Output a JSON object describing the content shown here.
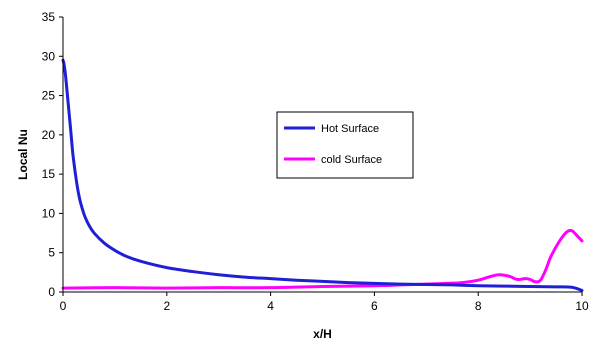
{
  "chart_data": {
    "type": "line",
    "title": "",
    "xlabel": "x/H",
    "ylabel": "Local Nu",
    "xlim": [
      0,
      10
    ],
    "ylim": [
      0,
      35
    ],
    "x_ticks": [
      0,
      2,
      4,
      6,
      8,
      10
    ],
    "y_ticks": [
      0,
      5,
      10,
      15,
      20,
      25,
      30,
      35
    ],
    "grid": false,
    "legend": "center-right",
    "series": [
      {
        "name": "Hot Surface",
        "color": "#1f1fd6",
        "x": [
          0,
          0.02,
          0.05,
          0.1,
          0.15,
          0.2,
          0.3,
          0.4,
          0.5,
          0.6,
          0.8,
          1.0,
          1.2,
          1.5,
          2.0,
          2.5,
          3.0,
          3.5,
          4.0,
          4.5,
          5.0,
          5.5,
          6.0,
          6.5,
          7.0,
          7.5,
          8.0,
          8.5,
          9.0,
          9.5,
          9.8,
          10.0
        ],
        "y": [
          29.5,
          29.0,
          27.5,
          24.0,
          20.5,
          17.0,
          12.5,
          10.0,
          8.5,
          7.5,
          6.2,
          5.3,
          4.6,
          3.9,
          3.1,
          2.6,
          2.2,
          1.9,
          1.7,
          1.5,
          1.35,
          1.2,
          1.1,
          1.0,
          0.95,
          0.9,
          0.8,
          0.75,
          0.7,
          0.65,
          0.6,
          0.2
        ]
      },
      {
        "name": "cold Surface",
        "color": "#ff00ff",
        "x": [
          0,
          1,
          2,
          3,
          4,
          5,
          6,
          6.5,
          7,
          7.4,
          7.7,
          8.0,
          8.2,
          8.4,
          8.6,
          8.75,
          8.9,
          9.0,
          9.1,
          9.2,
          9.3,
          9.4,
          9.55,
          9.7,
          9.8,
          9.9,
          10.0
        ],
        "y": [
          0.5,
          0.55,
          0.5,
          0.55,
          0.55,
          0.7,
          0.8,
          0.9,
          1.0,
          1.1,
          1.2,
          1.5,
          1.9,
          2.2,
          2.0,
          1.6,
          1.7,
          1.6,
          1.3,
          1.5,
          2.8,
          4.5,
          6.3,
          7.6,
          7.8,
          7.2,
          6.5
        ]
      }
    ]
  }
}
